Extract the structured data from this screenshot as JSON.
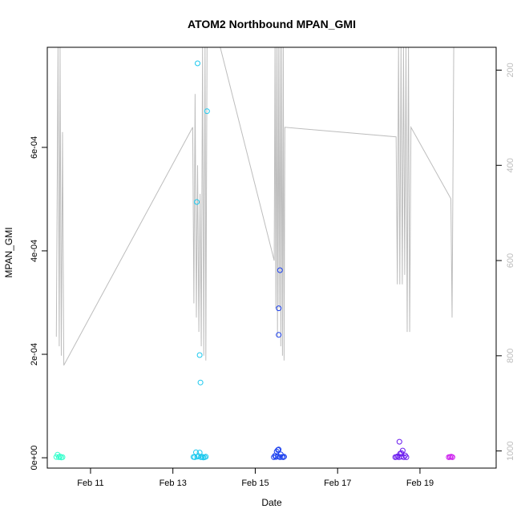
{
  "chart_data": {
    "type": "scatter",
    "title": "ATOM2 Northbound MPAN_GMI",
    "xlabel": "Date",
    "ylabel": "MPAN_GMI",
    "x_ticks": [
      {
        "day": 11,
        "label": "Feb 11"
      },
      {
        "day": 13,
        "label": "Feb 13"
      },
      {
        "day": 15,
        "label": "Feb 15"
      },
      {
        "day": 17,
        "label": "Feb 17"
      },
      {
        "day": 19,
        "label": "Feb 19"
      }
    ],
    "xlim": [
      9.95,
      20.85
    ],
    "ylim": [
      -2e-05,
      0.0007935
    ],
    "y_ticks": [
      {
        "value": 0,
        "label": "0e+00"
      },
      {
        "value": 0.0002,
        "label": "2e-04"
      },
      {
        "value": 0.0004,
        "label": "4e-04"
      },
      {
        "value": 0.0006,
        "label": "6e-04"
      }
    ],
    "right_axis": {
      "ylim": [
        1036,
        152
      ],
      "color": "#bdbdbd",
      "ticks": [
        {
          "value": 200,
          "label": "200"
        },
        {
          "value": 400,
          "label": "400"
        },
        {
          "value": 600,
          "label": "600"
        },
        {
          "value": 800,
          "label": "800"
        },
        {
          "value": 1000,
          "label": "1000"
        }
      ]
    },
    "line_series": {
      "color": "#bdbdbd",
      "points": [
        [
          10.17,
          760
        ],
        [
          10.21,
          152
        ],
        [
          10.24,
          780
        ],
        [
          10.26,
          152
        ],
        [
          10.29,
          800
        ],
        [
          10.32,
          330
        ],
        [
          10.35,
          820
        ],
        [
          13.48,
          320
        ],
        [
          13.51,
          690
        ],
        [
          13.54,
          250
        ],
        [
          13.57,
          720
        ],
        [
          13.6,
          400
        ],
        [
          13.63,
          750
        ],
        [
          13.66,
          460
        ],
        [
          13.69,
          780
        ],
        [
          13.72,
          152
        ],
        [
          13.75,
          800
        ],
        [
          13.78,
          152
        ],
        [
          13.8,
          810
        ],
        [
          13.83,
          152
        ],
        [
          14.15,
          152
        ],
        [
          15.46,
          600
        ],
        [
          15.48,
          152
        ],
        [
          15.5,
          700
        ],
        [
          15.52,
          152
        ],
        [
          15.54,
          760
        ],
        [
          15.56,
          152
        ],
        [
          15.58,
          700
        ],
        [
          15.6,
          152
        ],
        [
          15.62,
          780
        ],
        [
          15.64,
          152
        ],
        [
          15.66,
          800
        ],
        [
          15.68,
          152
        ],
        [
          15.7,
          810
        ],
        [
          15.72,
          320
        ],
        [
          18.42,
          340
        ],
        [
          18.45,
          650
        ],
        [
          18.48,
          152
        ],
        [
          18.51,
          650
        ],
        [
          18.54,
          152
        ],
        [
          18.57,
          650
        ],
        [
          18.6,
          152
        ],
        [
          18.63,
          630
        ],
        [
          18.66,
          152
        ],
        [
          18.69,
          750
        ],
        [
          18.72,
          152
        ],
        [
          18.75,
          750
        ],
        [
          18.78,
          320
        ],
        [
          19.75,
          470
        ],
        [
          19.78,
          720
        ],
        [
          19.82,
          152
        ]
      ]
    },
    "series": [
      {
        "color": "#33ffcc",
        "points": [
          [
            10.17,
            1.5e-06
          ],
          [
            10.2,
            6e-06
          ],
          [
            10.23,
            1e-06
          ],
          [
            10.26,
            2.5e-06
          ],
          [
            10.29,
            5e-07
          ],
          [
            10.32,
            1e-06
          ]
        ]
      },
      {
        "color": "#1ac8ee",
        "points": [
          [
            13.5,
            1.5e-06
          ],
          [
            13.53,
            1e-06
          ],
          [
            13.56,
            1.05e-05
          ],
          [
            13.59,
            2e-06
          ],
          [
            13.62,
            3.5e-06
          ],
          [
            13.65,
            1e-05
          ],
          [
            13.68,
            1e-06
          ],
          [
            13.71,
            2e-06
          ],
          [
            13.74,
            5e-07
          ],
          [
            13.77,
            1e-06
          ],
          [
            13.8,
            2e-06
          ],
          [
            13.6,
            0.0007625
          ],
          [
            13.58,
            0.0004945
          ],
          [
            13.65,
            0.0001985
          ],
          [
            13.67,
            0.0001455
          ],
          [
            13.83,
            0.00067
          ]
        ]
      },
      {
        "color": "#1a3fee",
        "points": [
          [
            15.45,
            1e-06
          ],
          [
            15.48,
            4e-06
          ],
          [
            15.5,
            1.5e-06
          ],
          [
            15.52,
            1.2e-05
          ],
          [
            15.55,
            2.5e-06
          ],
          [
            15.57,
            1.6e-05
          ],
          [
            15.6,
            1e-06
          ],
          [
            15.62,
            6.5e-06
          ],
          [
            15.65,
            1.5e-06
          ],
          [
            15.68,
            1e-06
          ],
          [
            15.7,
            2e-06
          ],
          [
            15.55,
            1.5e-05
          ],
          [
            15.6,
            0.0003625
          ],
          [
            15.57,
            0.000289
          ],
          [
            15.57,
            0.0002375
          ]
        ]
      },
      {
        "color": "#6a1aee",
        "points": [
          [
            18.4,
            1e-06
          ],
          [
            18.43,
            1.5e-06
          ],
          [
            18.46,
            3e-06
          ],
          [
            18.49,
            1e-06
          ],
          [
            18.52,
            8e-06
          ],
          [
            18.55,
            2e-06
          ],
          [
            18.58,
            1.4e-05
          ],
          [
            18.61,
            1e-06
          ],
          [
            18.64,
            4.5e-06
          ],
          [
            18.67,
            1e-06
          ],
          [
            18.5,
            3.1e-05
          ],
          [
            18.55,
            9e-06
          ]
        ]
      },
      {
        "color": "#cc1aee",
        "points": [
          [
            19.7,
            1e-06
          ],
          [
            19.73,
            1.5e-06
          ],
          [
            19.76,
            2e-06
          ],
          [
            19.79,
            1e-06
          ]
        ]
      }
    ]
  }
}
